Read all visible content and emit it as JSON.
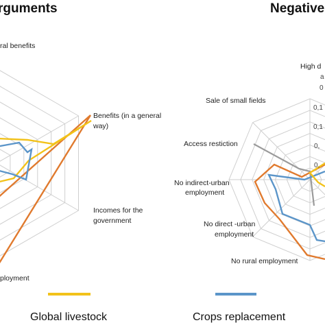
{
  "chart_data": [
    {
      "type": "radar",
      "title": "rguments",
      "axes": [
        "ral benefits",
        "Benefits (in a general way)",
        "Incomes for the government",
        "ployment"
      ],
      "series": [
        {
          "name": "Global livestock",
          "color": "#f2c21a"
        },
        {
          "name": "Crops replacement",
          "color": "#5b95c9"
        },
        {
          "name": "",
          "color": "#e07a2e"
        }
      ]
    },
    {
      "type": "radar",
      "title": "Negative",
      "axes": [
        "High d",
        "Sale of small fields",
        "Access restiction",
        "No indirect-urban employment",
        "No direct -urban employment",
        "No rural employment"
      ],
      "tick_labels": [
        "0,1",
        "0,1",
        "0,",
        "0,"
      ],
      "partial_labels": [
        "a",
        "0"
      ],
      "series": [
        {
          "name": "Global livestock",
          "color": "#f2c21a"
        },
        {
          "name": "Crops replacement",
          "color": "#5b95c9"
        },
        {
          "name": "",
          "color": "#e07a2e"
        },
        {
          "name": "",
          "color": "#9a9a9a"
        }
      ]
    }
  ],
  "legend": {
    "items": [
      {
        "label": "Global livestock",
        "color": "#f2c21a"
      },
      {
        "label": "Crops replacement",
        "color": "#5b95c9"
      }
    ]
  }
}
